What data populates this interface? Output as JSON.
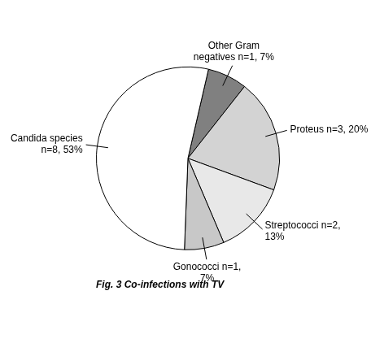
{
  "chart_data": {
    "type": "pie",
    "title": "Fig. 3 Co-infections with TV",
    "categories": [
      "Other Gram\nnegatives n=1, 7%",
      "Proteus n=3, 20%",
      "Streptococci n=2,\n13%",
      "Gonococci n=1,\n7%",
      "Candida species\nn=8, 53%"
    ],
    "values": [
      7,
      20,
      13,
      7,
      53
    ],
    "colors": [
      "#808080",
      "#d3d3d3",
      "#e8e8e8",
      "#c8c8c8",
      "#ffffff"
    ]
  }
}
